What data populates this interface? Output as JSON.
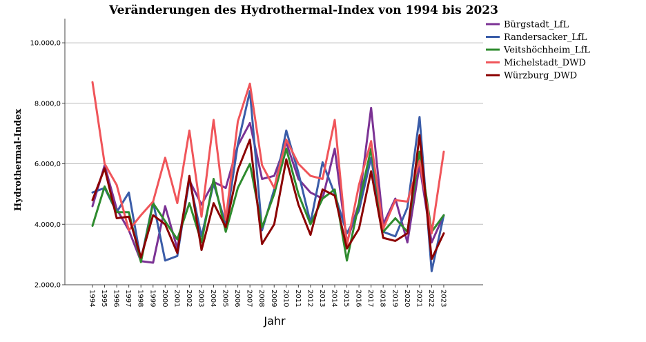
{
  "chart_data": {
    "type": "line",
    "title": "Veränderungen des Hydrothermal-Index von 1994 bis 2023",
    "xlabel": "Jahr",
    "ylabel": "Hydrothermal-Index",
    "ylim": [
      2000,
      10800
    ],
    "yticks": [
      2000,
      4000,
      6000,
      8000,
      10000
    ],
    "ytick_labels": [
      "2.000,0",
      "4.000,0",
      "6.000,0",
      "8.000,0",
      "10.000,0"
    ],
    "grid": true,
    "legend_position": "top-right",
    "categories": [
      "1994",
      "1995",
      "1996",
      "1997",
      "1998",
      "1999",
      "2000",
      "2001",
      "2002",
      "2003",
      "2004",
      "2005",
      "2006",
      "2007",
      "2008",
      "2009",
      "2010",
      "2011",
      "2012",
      "2013",
      "2014",
      "2015",
      "2016",
      "2017",
      "2018",
      "2019",
      "2020",
      "2021",
      "2022",
      "2023"
    ],
    "series": [
      {
        "name": "Bürgstadt_LfL",
        "color": "#7b3294",
        "values": [
          4600,
          5950,
          4500,
          3800,
          2780,
          2730,
          4600,
          3200,
          5450,
          4650,
          5400,
          5200,
          6600,
          7350,
          5500,
          5600,
          6700,
          5500,
          5050,
          4850,
          6500,
          3400,
          4700,
          7850,
          4000,
          4850,
          3400,
          5950,
          3400,
          4300
        ]
      },
      {
        "name": "Randersacker_LfL",
        "color": "#3a5ca8",
        "values": [
          5050,
          5200,
          4400,
          5050,
          2800,
          4750,
          2800,
          2950,
          5500,
          3600,
          5350,
          4000,
          6650,
          8400,
          3800,
          5150,
          7100,
          5700,
          4050,
          6050,
          5000,
          3700,
          4450,
          6200,
          3750,
          3600,
          4550,
          7550,
          2450,
          4300
        ]
      },
      {
        "name": "Veitshöchheim_LfL",
        "color": "#2e8b2e",
        "values": [
          3950,
          5250,
          4400,
          4400,
          2750,
          4700,
          4100,
          3500,
          4700,
          3400,
          5500,
          3750,
          5200,
          6000,
          3900,
          5000,
          6500,
          5000,
          4000,
          4850,
          5150,
          2800,
          4700,
          6500,
          3750,
          4200,
          3750,
          6400,
          3750,
          4300
        ]
      },
      {
        "name": "Michelstadt_DWD",
        "color": "#f0555a",
        "values": [
          8700,
          6000,
          5300,
          3800,
          4300,
          4750,
          6200,
          4700,
          7100,
          4250,
          7450,
          4150,
          7400,
          8650,
          5950,
          5200,
          6800,
          6000,
          5600,
          5500,
          7450,
          3300,
          5300,
          6750,
          3850,
          4800,
          4750,
          6100,
          3700,
          6400
        ]
      },
      {
        "name": "Würzburg_DWD",
        "color": "#8b0000",
        "values": [
          4800,
          5850,
          4200,
          4250,
          2900,
          4300,
          4000,
          3050,
          5600,
          3150,
          4700,
          3900,
          5800,
          6800,
          3350,
          4000,
          6150,
          4650,
          3650,
          5150,
          4950,
          3200,
          3850,
          5750,
          3550,
          3450,
          3700,
          6950,
          2850,
          3700
        ]
      }
    ]
  }
}
